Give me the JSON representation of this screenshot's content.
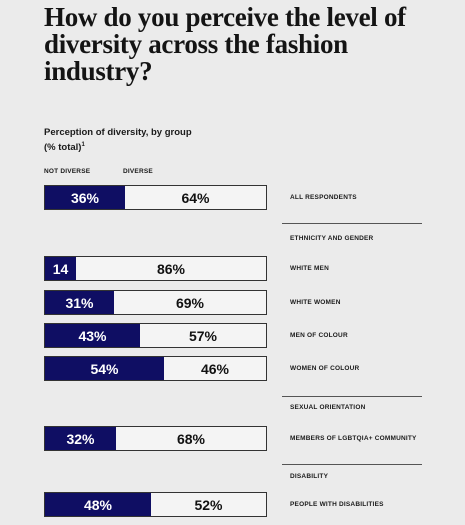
{
  "title": "How do you perceive the level of diversity across the fashion industry?",
  "subtitle_line1": "Perception of diversity, by group",
  "subtitle_line2": "(% total)",
  "subtitle_sup": "1",
  "colors": {
    "not_diverse": "#0f0e63",
    "diverse": "#f4f4f4",
    "background": "#ebebeb"
  },
  "chart_data": {
    "type": "bar",
    "orientation": "horizontal-stacked-100",
    "title": "How do you perceive the level of diversity across the fashion industry?",
    "subtitle": "Perception of diversity, by group (% total)",
    "legend": [
      "NOT DIVERSE",
      "DIVERSE"
    ],
    "sections": [
      "",
      "ETHNICITY AND GENDER",
      "SEXUAL ORIENTATION",
      "DISABILITY"
    ],
    "categories": [
      "ALL RESPONDENTS",
      "WHITE MEN",
      "WHITE WOMEN",
      "MEN OF COLOUR",
      "WOMEN OF COLOUR",
      "MEMBERS OF LGBTQIA+ COMMUNITY",
      "PEOPLE WITH DISABILITIES"
    ],
    "category_sections": [
      "",
      "ETHNICITY AND GENDER",
      "ETHNICITY AND GENDER",
      "ETHNICITY AND GENDER",
      "ETHNICITY AND GENDER",
      "SEXUAL ORIENTATION",
      "DISABILITY"
    ],
    "series": [
      {
        "name": "NOT DIVERSE",
        "values": [
          36,
          14,
          31,
          43,
          54,
          32,
          48
        ],
        "labels": [
          "36%",
          "14",
          "31%",
          "43%",
          "54%",
          "32%",
          "48%"
        ]
      },
      {
        "name": "DIVERSE",
        "values": [
          64,
          86,
          69,
          57,
          46,
          68,
          52
        ],
        "labels": [
          "64%",
          "86%",
          "69%",
          "57%",
          "46%",
          "68%",
          "52%"
        ]
      }
    ]
  }
}
